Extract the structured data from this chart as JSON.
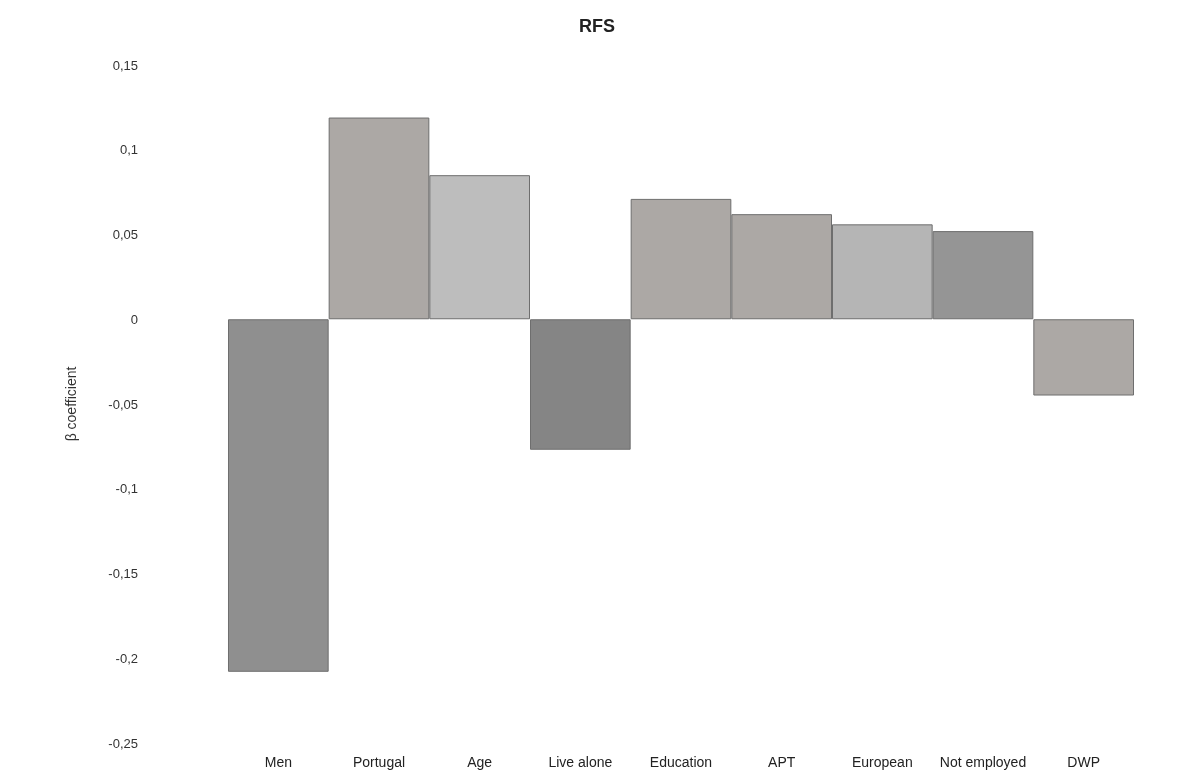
{
  "chart_data": {
    "type": "bar",
    "title": "RFS",
    "ylabel": "β coefficient",
    "categories": [
      "Men",
      "Portugal",
      "Age",
      "Live alone",
      "Education",
      "APT",
      "European",
      "Not employed",
      "DWP"
    ],
    "values": [
      -0.208,
      0.119,
      0.085,
      -0.077,
      0.071,
      0.062,
      0.056,
      0.052,
      -0.045
    ],
    "colors": [
      "#8f8f8f",
      "#aca8a5",
      "#bdbdbd",
      "#858585",
      "#aca8a5",
      "#aca8a5",
      "#b5b5b5",
      "#959595",
      "#aca8a5"
    ],
    "ylim": [
      -0.25,
      0.15
    ],
    "yticks": [
      {
        "value": -0.25,
        "label": "-0,25"
      },
      {
        "value": -0.2,
        "label": "-0,2"
      },
      {
        "value": -0.15,
        "label": "-0,15"
      },
      {
        "value": -0.1,
        "label": "-0,1"
      },
      {
        "value": -0.05,
        "label": "-0,05"
      },
      {
        "value": 0,
        "label": "0"
      },
      {
        "value": 0.05,
        "label": "0,05"
      },
      {
        "value": 0.1,
        "label": "0,1"
      },
      {
        "value": 0.15,
        "label": "0,15"
      }
    ],
    "grid": false
  }
}
